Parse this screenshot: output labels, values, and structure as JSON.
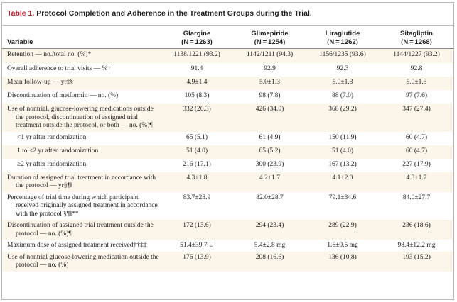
{
  "table": {
    "number": "Table 1.",
    "caption": "Protocol Completion and Adherence in the Treatment Groups during the Trial."
  },
  "columns": [
    {
      "name": "Glargine",
      "n": "(N = 1263)"
    },
    {
      "name": "Glimepiride",
      "n": "(N = 1254)"
    },
    {
      "name": "Liraglutide",
      "n": "(N = 1262)"
    },
    {
      "name": "Sitagliptin",
      "n": "(N = 1268)"
    }
  ],
  "variable_header": "Variable",
  "rows": [
    {
      "label": "Retention — no./total no. (%)*",
      "values": [
        "1138/1221 (93.2)",
        "1142/1211 (94.3)",
        "1156/1235 (93.6)",
        "1144/1227 (93.2)"
      ]
    },
    {
      "label": "Overall adherence to trial visits — %†",
      "values": [
        "91.4",
        "92.9",
        "92.3",
        "92.8"
      ]
    },
    {
      "label": "Mean follow-up — yr‡§",
      "values": [
        "4.9±1.4",
        "5.0±1.3",
        "5.0±1.3",
        "5.0±1.3"
      ]
    },
    {
      "label": "Discontinuation of metformin — no. (%)",
      "values": [
        "105 (8.3)",
        "98 (7.8)",
        "88 (7.0)",
        "97 (7.6)"
      ]
    },
    {
      "label": "Use of nontrial, glucose-lowering medications outside the protocol, discontinuation of assigned trial treatment outside the protocol, or both — no. (%)¶",
      "values": [
        "332 (26.3)",
        "426 (34.0)",
        "368 (29.2)",
        "347 (27.4)"
      ]
    },
    {
      "label": "<1 yr after randomization",
      "values": [
        "65 (5.1)",
        "61 (4.9)",
        "150 (11.9)",
        "60 (4.7)"
      ]
    },
    {
      "label": "1 to <2 yr after randomization",
      "values": [
        "51 (4.0)",
        "65 (5.2)",
        "51 (4.0)",
        "60 (4.7)"
      ]
    },
    {
      "label": "≥2 yr after randomization",
      "values": [
        "216 (17.1)",
        "300 (23.9)",
        "167 (13.2)",
        "227 (17.9)"
      ]
    },
    {
      "label": "Duration of assigned trial treatment in accordance with the protocol — yr§¶‖",
      "values": [
        "4.3±1.8",
        "4.2±1.7",
        "4.1±2.0",
        "4.3±1.7"
      ]
    },
    {
      "label": "Percentage of trial time during which participant received originally assigned treatment in accordance with the protocol §¶‖**",
      "values": [
        "83.7±28.9",
        "82.0±28.7",
        "79.1±34.6",
        "84.0±27.7"
      ]
    },
    {
      "label": "Discontinuation of assigned trial treatment outside the protocol — no. (%)¶",
      "values": [
        "172 (13.6)",
        "294 (23.4)",
        "289 (22.9)",
        "236 (18.6)"
      ]
    },
    {
      "label": "Maximum dose of assigned treatment received††‡‡",
      "values": [
        "51.4±39.7 U",
        "5.4±2.8 mg",
        "1.6±0.5 mg",
        "98.4±12.2 mg"
      ]
    },
    {
      "label": "Use of nontrial glucose-lowering medication outside the protocol — no. (%)",
      "values": [
        "176 (13.9)",
        "208 (16.6)",
        "136 (10.8)",
        "193 (15.2)"
      ]
    }
  ],
  "colors": {
    "caption_number": "#b2202e",
    "alt_row": "#fcf6ea",
    "rule": "#8c8c8c"
  }
}
